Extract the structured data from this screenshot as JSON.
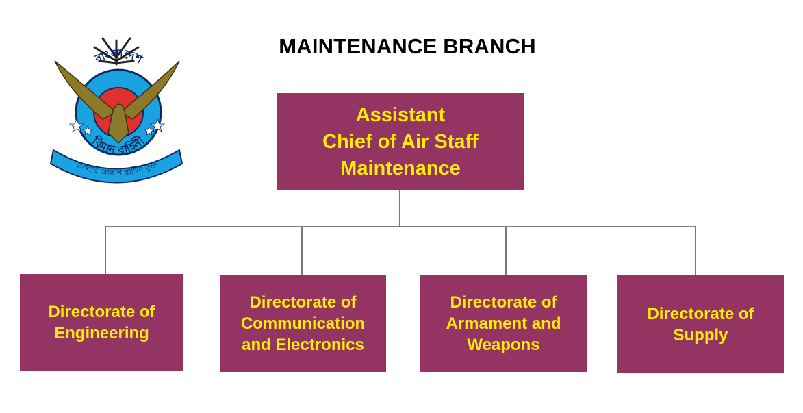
{
  "title": "MAINTENANCE BRANCH",
  "head": {
    "label": "Assistant\nChief of Air Staff\nMaintenance"
  },
  "directorates": [
    {
      "label": "Directorate of\nEngineering"
    },
    {
      "label": "Directorate of\nCommunication\nand Electronics"
    },
    {
      "label": "Directorate of\nArmament and\nWeapons"
    },
    {
      "label": "Directorate of\nSupply"
    }
  ],
  "emblem": {
    "top_text": "বাংলাদেশ",
    "bottom_text": "বিমান বাহিনী",
    "motto": "বাংলার আকাশ রাখিব মুক্ত"
  },
  "colors": {
    "box_fill": "#943462",
    "box_text": "#ffec00",
    "connector": "#555555",
    "emblem_ring": "#1aa3e0",
    "emblem_center": "#e0312e",
    "emblem_eagle": "#8a7a2a"
  }
}
